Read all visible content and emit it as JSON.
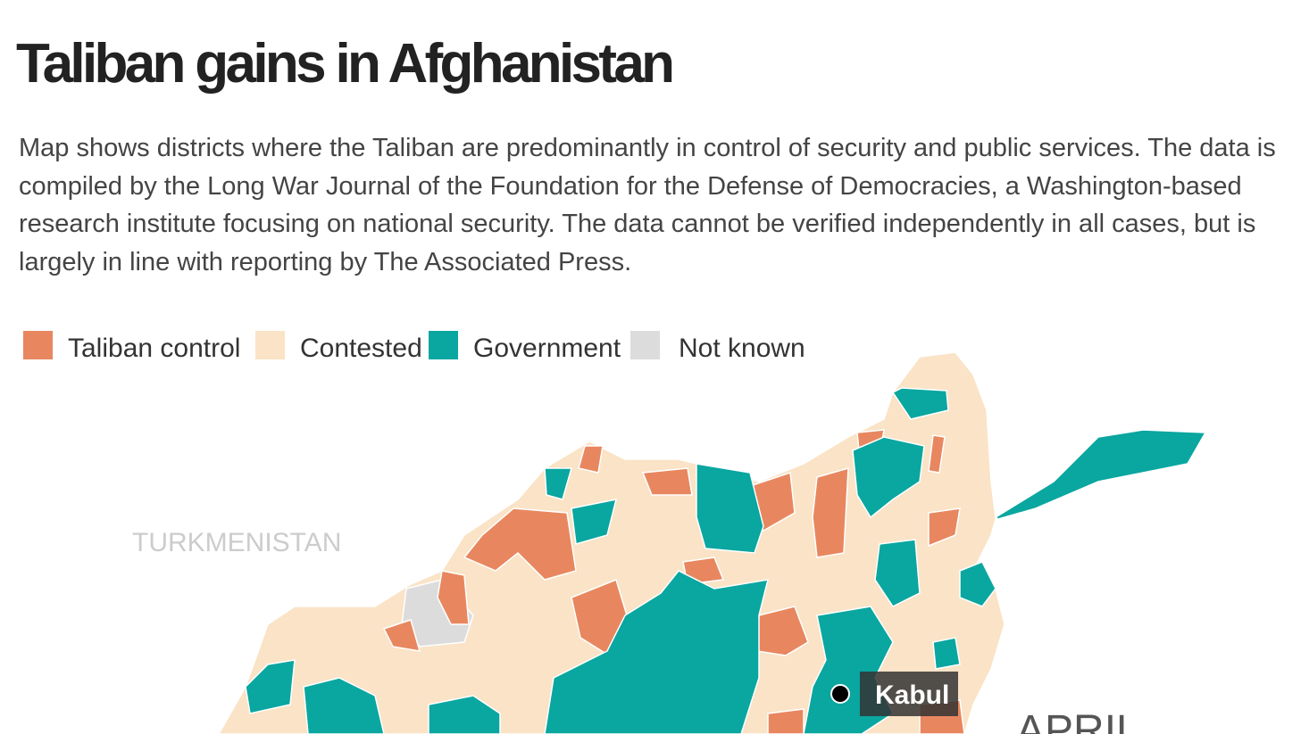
{
  "header": {
    "title": "Taliban gains in Afghanistan",
    "description": [
      "Map shows districts where the Taliban are predominantly in control of security and public services. The data is",
      "compiled by the Long War Journal of the Foundation for the Defense of Democracies, a Washington-based",
      "research institute focusing on national security. The data cannot be verified independently in all cases, but is",
      "largely in line with reporting by The Associated Press."
    ]
  },
  "legend": {
    "items": [
      {
        "label": "Taliban control",
        "color": "#e8875f"
      },
      {
        "label": "Contested",
        "color": "#fae3c6"
      },
      {
        "label": "Government",
        "color": "#0aa6a0"
      },
      {
        "label": "Not known",
        "color": "#dcdcdc"
      }
    ]
  },
  "map": {
    "country_label": "TURKMENISTAN",
    "city_label": "Kabul",
    "period_label": "APRIL"
  }
}
